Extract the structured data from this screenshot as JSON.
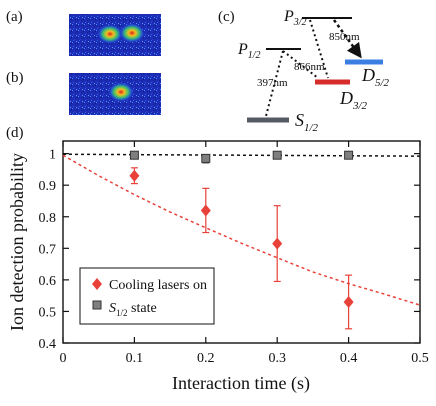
{
  "panels": {
    "a": "(a)",
    "b": "(b)",
    "c": "(c)",
    "d": "(d)"
  },
  "level_diagram": {
    "levels": [
      {
        "main": "P",
        "sub": "3/2"
      },
      {
        "main": "P",
        "sub": "1/2"
      },
      {
        "main": "D",
        "sub": "5/2"
      },
      {
        "main": "D",
        "sub": "3/2"
      },
      {
        "main": "S",
        "sub": "1/2"
      }
    ],
    "transitions": [
      "850nm",
      "866nm",
      "397nm"
    ],
    "colors": {
      "level_black": "#111111",
      "d52": "#3b7fe3",
      "d32": "#d62c2c",
      "s12": "#555b62"
    }
  },
  "ion_images": [
    {
      "panel": "a",
      "ions": 2,
      "description_colors": [
        "#1b2bb0",
        "#f0c020",
        "#e02020"
      ]
    },
    {
      "panel": "b",
      "ions": 1,
      "description_colors": [
        "#1b2bb0",
        "#f0c020",
        "#e02020"
      ]
    }
  ],
  "chart_data": {
    "type": "scatter",
    "xlabel": "Interaction time (s)",
    "ylabel": "Ion detection probability",
    "xlim": [
      0,
      0.5
    ],
    "ylim": [
      0.4,
      1.04
    ],
    "xticks": [
      "0",
      "0.1",
      "0.2",
      "0.3",
      "0.4",
      "0.5"
    ],
    "yticks": [
      "0.4",
      "0.5",
      "0.6",
      "0.7",
      "0.8",
      "0.9",
      "1"
    ],
    "grid": false,
    "legend_placement": "bottom-left",
    "series": [
      {
        "name": "Cooling lasers on",
        "marker": "diamond",
        "color": "#e8413a",
        "x": [
          0.1,
          0.2,
          0.3,
          0.4
        ],
        "y": [
          0.93,
          0.82,
          0.715,
          0.53
        ],
        "err_low": [
          0.025,
          0.07,
          0.12,
          0.085
        ],
        "err_high": [
          0.025,
          0.07,
          0.12,
          0.085
        ]
      },
      {
        "name": "S1/2 state",
        "legend_main": "S",
        "legend_sub": "1/2",
        "legend_suffix": " state",
        "marker": "square",
        "color": "#7f7f7f",
        "x": [
          0.1,
          0.2,
          0.3,
          0.4
        ],
        "y": [
          0.995,
          0.985,
          0.995,
          0.995
        ],
        "err_low": [
          0.005,
          0.015,
          0.005,
          0.005
        ],
        "err_high": [
          0.005,
          0.005,
          0.005,
          0.005
        ]
      }
    ],
    "fits": [
      {
        "name": "cooling fit",
        "style": "dotted",
        "color": "#e8413a",
        "x": [
          0,
          0.05,
          0.1,
          0.15,
          0.2,
          0.25,
          0.3,
          0.35,
          0.4,
          0.45,
          0.5
        ],
        "y": [
          0.995,
          0.93,
          0.87,
          0.815,
          0.765,
          0.716,
          0.67,
          0.625,
          0.588,
          0.555,
          0.52
        ]
      },
      {
        "name": "S1/2 fit",
        "style": "dotted",
        "color": "#111111",
        "x": [
          0,
          0.5
        ],
        "y": [
          0.998,
          0.992
        ]
      }
    ]
  }
}
